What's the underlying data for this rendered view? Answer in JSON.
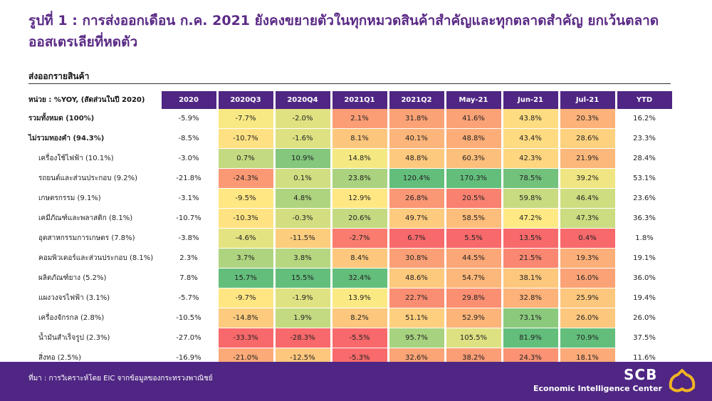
{
  "title": "รูปที่ 1 : การส่งออกเดือน ก.ค. 2021 ยังคงขยายตัวในทุกหมวดสินค้าสำคัญและทุกตลาดสำคัญ ยกเว้นตลาดออสเตรเลียที่หดตัว",
  "subtitle": "ส่งออกรายสินค้า",
  "footer": {
    "source": "ที่มา : การวิเคราะห์โดย EIC จากข้อมูลของกระทรวงพาณิชย์",
    "brand": "SCB",
    "brand_sub": "Economic Intelligence Center",
    "logo_icon": "scb-logo-icon"
  },
  "colors": {
    "header_bg": "#4f2683",
    "title": "#5b2a86",
    "heat_low": "#f8696b",
    "heat_mid": "#ffeb84",
    "heat_high": "#63be7b"
  },
  "chart_data": {
    "type": "table",
    "unit_label": "หน่วย : %YOY, (สัดส่วนในปี 2020)",
    "columns": [
      "2020",
      "2020Q3",
      "2020Q4",
      "2021Q1",
      "2021Q2",
      "May-21",
      "Jun-21",
      "Jul-21",
      "YTD"
    ],
    "rows": [
      {
        "label": "รวมทั้งหมด (100%)",
        "bold": true,
        "values": [
          "-5.9%",
          "-7.7%",
          "-2.0%",
          "2.1%",
          "31.8%",
          "41.6%",
          "43.8%",
          "20.3%",
          "16.2%"
        ]
      },
      {
        "label": "ไม่รวมทองคำ (94.3%)",
        "bold": true,
        "values": [
          "-8.5%",
          "-10.7%",
          "-1.6%",
          "8.1%",
          "40.1%",
          "48.8%",
          "43.4%",
          "28.6%",
          "23.3%"
        ]
      },
      {
        "label": "เครื่องใช้ไฟฟ้า (10.1%)",
        "bold": false,
        "values": [
          "-3.0%",
          "0.7%",
          "10.9%",
          "14.8%",
          "48.8%",
          "60.3%",
          "42.3%",
          "21.9%",
          "28.4%"
        ]
      },
      {
        "label": "รถยนต์และส่วนประกอบ (9.2%)",
        "bold": false,
        "values": [
          "-21.8%",
          "-24.3%",
          "0.1%",
          "23.8%",
          "120.4%",
          "170.3%",
          "78.5%",
          "39.2%",
          "53.1%"
        ]
      },
      {
        "label": "เกษตรกรรม (9.1%)",
        "bold": false,
        "values": [
          "-3.1%",
          "-9.5%",
          "4.8%",
          "12.9%",
          "26.8%",
          "20.5%",
          "59.8%",
          "46.4%",
          "23.6%"
        ]
      },
      {
        "label": "เคมีภัณฑ์และพลาสติก (8.1%)",
        "bold": false,
        "values": [
          "-10.7%",
          "-10.3%",
          "-0.3%",
          "20.6%",
          "49.7%",
          "58.5%",
          "47.2%",
          "47.3%",
          "36.3%"
        ]
      },
      {
        "label": "อุตสาหกรรมการเกษตร (7.8%)",
        "bold": false,
        "values": [
          "-3.8%",
          "-4.6%",
          "-11.5%",
          "-2.7%",
          "6.7%",
          "5.5%",
          "13.5%",
          "0.4%",
          "1.8%"
        ]
      },
      {
        "label": "คอมพิวเตอร์และส่วนประกอบ (8.1%)",
        "bold": false,
        "values": [
          "2.3%",
          "3.7%",
          "3.8%",
          "8.4%",
          "30.8%",
          "44.5%",
          "21.5%",
          "19.3%",
          "19.1%"
        ]
      },
      {
        "label": "ผลิตภัณฑ์ยาง (5.2%)",
        "bold": false,
        "values": [
          "7.8%",
          "15.7%",
          "15.5%",
          "32.4%",
          "48.6%",
          "54.7%",
          "38.1%",
          "16.0%",
          "36.0%"
        ]
      },
      {
        "label": "แผงวงจรไฟฟ้า (3.1%)",
        "bold": false,
        "values": [
          "-5.7%",
          "-9.7%",
          "-1.9%",
          "13.9%",
          "22.7%",
          "29.8%",
          "32.8%",
          "25.9%",
          "19.4%"
        ]
      },
      {
        "label": "เครื่องจักรกล (2.8%)",
        "bold": false,
        "values": [
          "-10.5%",
          "-14.8%",
          "1.9%",
          "8.2%",
          "51.1%",
          "52.9%",
          "73.1%",
          "26.0%",
          "26.0%"
        ]
      },
      {
        "label": "น้ำมันสำเร็จรูป (2.3%)",
        "bold": false,
        "values": [
          "-27.0%",
          "-33.3%",
          "-28.3%",
          "-5.5%",
          "95.7%",
          "105.5%",
          "81.9%",
          "70.9%",
          "37.5%"
        ]
      },
      {
        "label": "สิ่งทอ (2.5%)",
        "bold": false,
        "values": [
          "-16.9%",
          "-21.0%",
          "-12.5%",
          "-5.3%",
          "32.6%",
          "38.2%",
          "24.3%",
          "18.1%",
          "11.6%"
        ]
      }
    ],
    "heatmap_columns": [
      "2020Q3",
      "2020Q4",
      "2021Q1",
      "2021Q2",
      "May-21",
      "Jun-21",
      "Jul-21"
    ]
  }
}
